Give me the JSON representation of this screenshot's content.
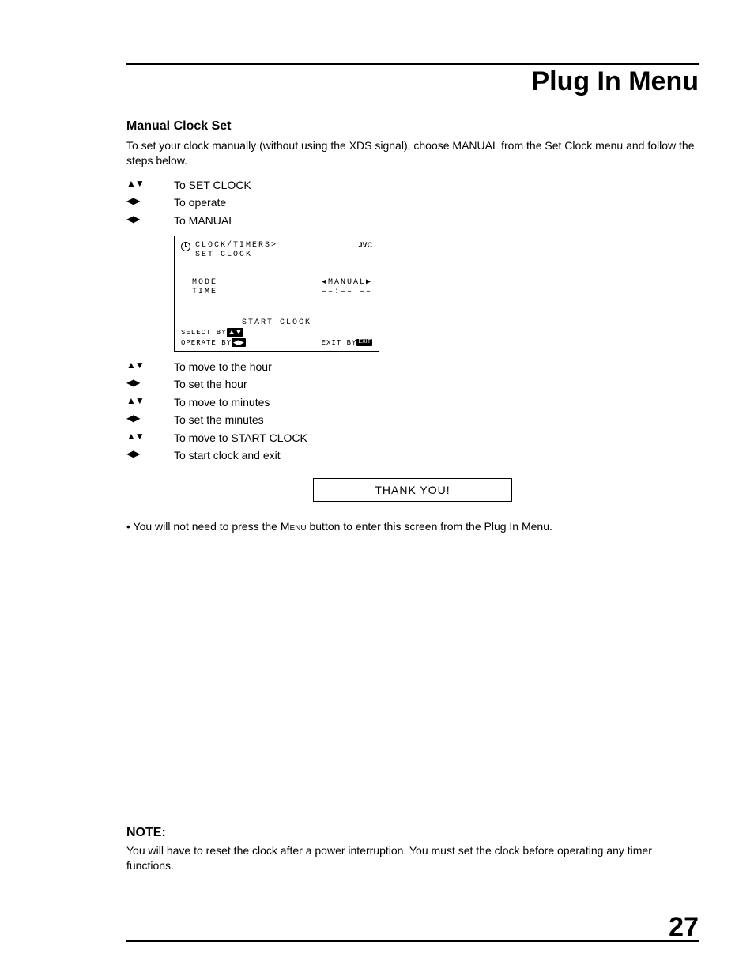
{
  "chapter_title": "Plug In Menu",
  "section_heading": "Manual Clock Set",
  "intro_text": "To set your clock manually (without using the XDS signal), choose MANUAL from the Set Clock menu and follow the steps below.",
  "steps_a": [
    {
      "icon": "▲▼",
      "text": "To SET CLOCK"
    },
    {
      "icon": "◀▶",
      "text": "To operate"
    },
    {
      "icon": "◀▶",
      "text": "To MANUAL"
    }
  ],
  "osd": {
    "path_line1": "CLOCK/TIMERS>",
    "path_line2": "SET CLOCK",
    "brand": "JVC",
    "row_mode_label": "MODE",
    "row_mode_value": "◀MANUAL▶",
    "row_time_label": "TIME",
    "row_time_value": "––:––  ––",
    "start_label": "START CLOCK",
    "foot_select": "SELECT  BY",
    "foot_select_badge": "▲▼",
    "foot_operate": "OPERATE BY",
    "foot_operate_badge": "◀▶",
    "foot_exit": "EXIT BY",
    "foot_exit_badge": "EXIT"
  },
  "steps_b": [
    {
      "icon": "▲▼",
      "text": "To move to the hour"
    },
    {
      "icon": "◀▶",
      "text": "To set the hour"
    },
    {
      "icon": "▲▼",
      "text": "To move to minutes"
    },
    {
      "icon": "◀▶",
      "text": "To set the minutes"
    },
    {
      "icon": "▲▼",
      "text": "To move to START CLOCK"
    },
    {
      "icon": "◀▶",
      "text": "To start clock and exit"
    }
  ],
  "thank_you": "THANK YOU!",
  "bullet_prefix": "• You will not need to press the ",
  "bullet_menu_word": "Menu",
  "bullet_suffix": " button to enter this screen from the Plug In Menu.",
  "note_heading": "NOTE:",
  "note_text": "You will have to reset the clock after a power interruption. You must set the clock before operating any timer functions.",
  "page_number": "27"
}
